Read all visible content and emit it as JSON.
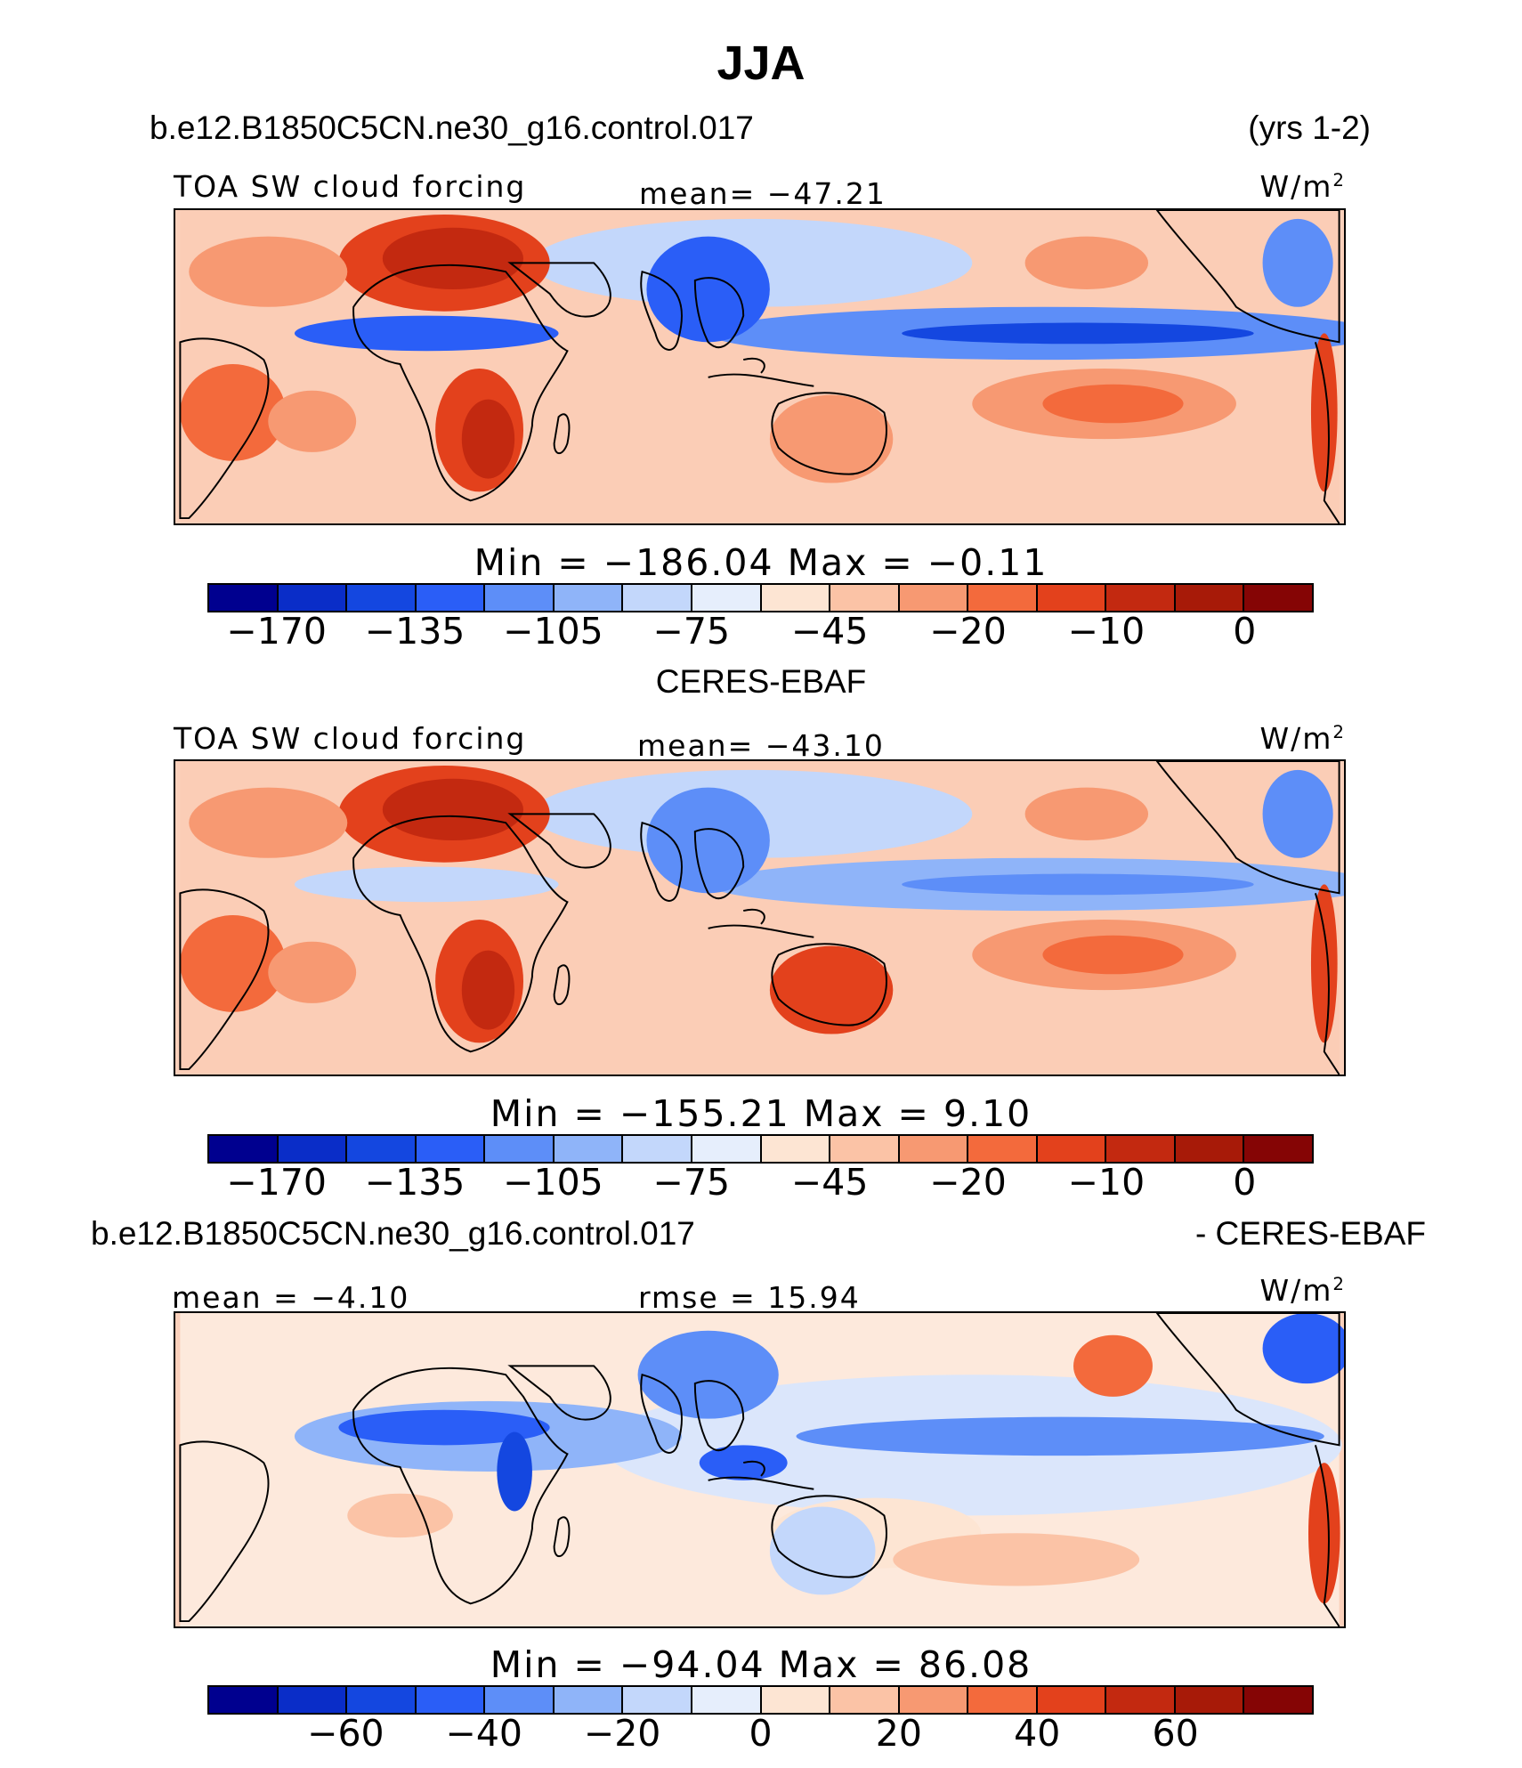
{
  "title": "JJA",
  "panels": [
    {
      "case_name": "b.e12.B1850C5CN.ne30_g16.control.017",
      "years": "(yrs 1-2)",
      "variable": "TOA SW cloud forcing",
      "mean_label": "mean=  −47.21",
      "units": "W/m",
      "units_exp": "2",
      "minmax": "Min  =  −186.04  Max  =   −0.11",
      "colorbar_ticks": [
        "−170",
        "−135",
        "−105",
        "−75",
        "−45",
        "−20",
        "−10",
        "0"
      ],
      "map_style": "model"
    },
    {
      "case_name": "CERES-EBAF",
      "variable": "TOA SW cloud forcing",
      "mean_label": "mean=  −43.10",
      "units": "W/m",
      "units_exp": "2",
      "minmax": "Min  =  −155.21  Max  =    9.10",
      "colorbar_ticks": [
        "−170",
        "−135",
        "−105",
        "−75",
        "−45",
        "−20",
        "−10",
        "0"
      ],
      "map_style": "obs"
    },
    {
      "case_name": "b.e12.B1850C5CN.ne30_g16.control.017",
      "case_suffix": "- CERES-EBAF",
      "mean_label": "mean  =   −4.10",
      "rmse_label": "rmse  =   15.94",
      "units": "W/m",
      "units_exp": "2",
      "minmax": "Min  =  −94.04  Max  =   86.08",
      "colorbar_ticks": [
        "−60",
        "−40",
        "−20",
        "0",
        "20",
        "40",
        "60"
      ],
      "map_style": "diff"
    }
  ],
  "colors": {
    "palette": [
      "#00008f",
      "#0a2dc8",
      "#1447e0",
      "#2a5ef7",
      "#5d8ef8",
      "#8fb4f9",
      "#c3d7fb",
      "#e6eefc",
      "#fde5d3",
      "#fbc3a6",
      "#f79972",
      "#f36a3c",
      "#e3411c",
      "#c32910",
      "#a71a08",
      "#850505"
    ],
    "land_outline": "#000000"
  }
}
